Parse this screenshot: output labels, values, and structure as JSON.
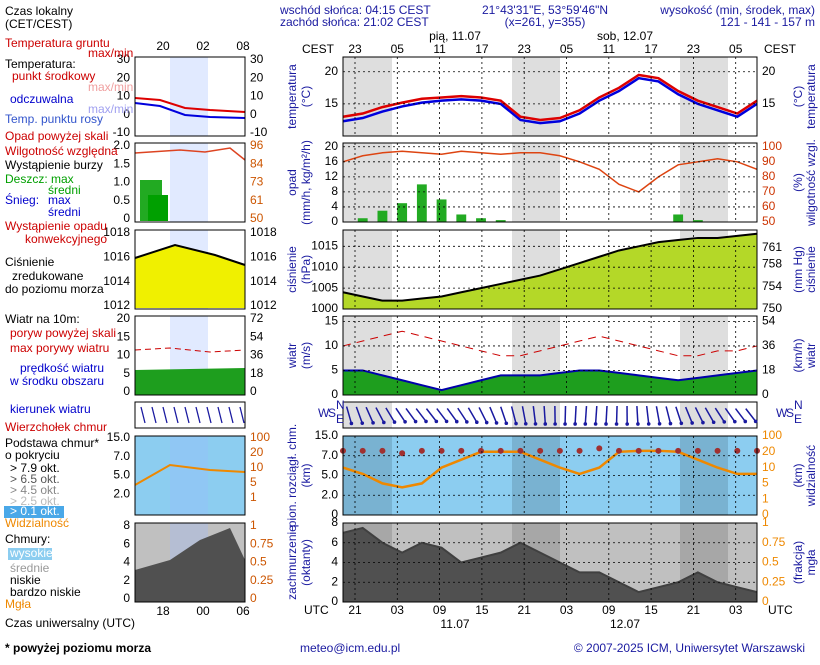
{
  "header": {
    "sunrise": "wschód słońca: 04:15 CEST",
    "sunset": "zachód słońca: 21:02 CEST",
    "coords": "21°43'31\"E, 53°59'46\"N",
    "grid": "(x=261, y=355)",
    "elev_title": "wysokość (min, środek, max)",
    "elev": "121 - 141 - 157 m"
  },
  "top_axis": {
    "unit": "CEST",
    "hours": [
      "23",
      "05",
      "11",
      "17",
      "23",
      "05",
      "11",
      "17",
      "23",
      "05"
    ],
    "days": [
      "pią, 11.07",
      "sob, 12.07"
    ]
  },
  "bottom_axis": {
    "unit": "UTC",
    "hours": [
      "21",
      "03",
      "09",
      "15",
      "21",
      "03",
      "09",
      "15",
      "21",
      "03"
    ],
    "days": [
      "11.07",
      "12.07"
    ]
  },
  "direction_labels": [
    "W",
    "S",
    "N",
    "E"
  ],
  "legend": {
    "local_time": [
      "Czas lokalny",
      "(CET/CEST)"
    ],
    "local_hours": [
      "20",
      "02",
      "08"
    ],
    "utc_hours": [
      "18",
      "00",
      "06"
    ],
    "utc_title": "Czas uniwersalny (UTC)",
    "temp": {
      "labels": [
        "Temperatura gruntu",
        "max/min",
        "Temperatura:",
        "punkt środkowy",
        "max/min",
        "odczuwalna",
        "max/min",
        "Temp. punktu rosy"
      ],
      "ticks": [
        30,
        20,
        10,
        0,
        -10
      ],
      "ticks2": [
        30,
        20,
        10,
        0,
        -10
      ]
    },
    "precip": {
      "labels": [
        "Opad powyżej skali",
        "Wilgotność względna",
        "Wystąpienie burzy",
        "Deszcz: max",
        "średni",
        "Śnieg:",
        "max",
        "średni",
        "Wystąpienie opadu",
        "konwekcyjnego"
      ],
      "ticks": [
        {
          "value": 2,
          "label": "2.0"
        },
        {
          "value": 1.5,
          "label": "1.5"
        },
        {
          "value": 1,
          "label": "1.0"
        },
        {
          "value": 0.5,
          "label": "0.5"
        },
        0
      ],
      "ticks2": [
        96,
        84,
        73,
        61,
        50
      ]
    },
    "pressure": {
      "labels": [
        "Ciśnienie",
        "zredukowane",
        "do poziomu morza"
      ],
      "ticks": [
        1018,
        1016,
        1014,
        1012
      ],
      "ticks2": [
        1018,
        1016,
        1014,
        1012
      ]
    },
    "wind": {
      "labels": [
        "Wiatr na 10m:",
        "poryw powyżej skali",
        "max porywy wiatru",
        "prędkość wiatru",
        "w środku obszaru"
      ],
      "ticks": [
        20,
        15,
        10,
        5,
        0
      ],
      "ticks2": [
        72,
        54,
        36,
        18,
        0
      ]
    },
    "direction": "kierunek wiatru",
    "cloudbase": {
      "labels": [
        "Wierzchołek chmur",
        "Podstawa chmur*",
        "o pokryciu",
        "> 7.9 okt.",
        "> 6.5 okt.",
        "> 4.5 okt.",
        "> 2.5 okt.",
        "> 0.1 okt.",
        "Widzialność"
      ],
      "ticks": [
        {
          "value": 15,
          "label": "15.0"
        },
        {
          "value": 7,
          "label": "7.0"
        },
        {
          "value": 5,
          "label": "5.0"
        },
        {
          "value": 2,
          "label": "2.0"
        }
      ],
      "ticks2": [
        100,
        20,
        10,
        5,
        1
      ]
    },
    "clouds": {
      "labels": [
        "Chmury:",
        "wysokie",
        "średnie",
        "niskie",
        "bardzo niskie",
        "Mgła"
      ],
      "ticks": [
        8,
        6,
        4,
        2,
        0
      ],
      "ticks2": [
        1,
        0.75,
        0.5,
        0.25,
        0
      ]
    }
  },
  "chart_data": [
    {
      "type": "line",
      "ylabel": [
        "temperatura",
        "(°C)"
      ],
      "y2label": [
        "(°C)",
        "temperatura"
      ],
      "ylim": [
        10,
        22.3
      ],
      "yticks": [
        15,
        20
      ],
      "y2lim": [
        10,
        22.3
      ],
      "y2ticks": [
        15,
        20
      ],
      "grid": true,
      "background": "#ffffff",
      "series": [
        {
          "color": "#dd0000",
          "values": [
            13.0,
            13.5,
            14.5,
            15.2,
            15.8,
            16.0,
            16.2,
            16.0,
            15.5,
            13.0,
            12.5,
            12.8,
            14.0,
            16.0,
            17.5,
            19.5,
            19.0,
            17.0,
            15.5,
            14.5,
            13.5,
            15.5
          ]
        },
        {
          "color": "#0000dd",
          "values": [
            12.3,
            12.8,
            13.8,
            14.6,
            15.2,
            15.5,
            15.7,
            15.5,
            15.0,
            12.5,
            12.0,
            12.3,
            13.5,
            15.5,
            17.0,
            19.0,
            18.5,
            16.5,
            15.0,
            14.0,
            13.0,
            15.0
          ]
        }
      ]
    },
    {
      "type": "bar",
      "ylabel": [
        "opad",
        "(mm/h, kg/m²/h)"
      ],
      "y2label": [
        "(%)",
        "wilgotność wzgl."
      ],
      "ylim": [
        0,
        21
      ],
      "yticks": [
        0,
        4,
        8,
        12,
        16,
        20
      ],
      "y2lim": [
        50,
        102.5
      ],
      "y2ticks": [
        50,
        60,
        70,
        80,
        90,
        100
      ],
      "y2color": "#cc3300",
      "grid": true,
      "background": "#ffffff",
      "series": [
        {
          "color": "#22aa22",
          "values": [
            0,
            1,
            3,
            5,
            10,
            6,
            2,
            1,
            0.5,
            0,
            0,
            0,
            0,
            0,
            0,
            0,
            0,
            2,
            0.5,
            0,
            0,
            0
          ]
        },
        {
          "color": "#dd4411",
          "axis": "y2",
          "values": [
            90,
            94,
            96,
            97,
            96,
            95,
            97,
            96,
            95,
            96,
            96,
            94,
            90,
            85,
            75,
            70,
            80,
            88,
            90,
            92,
            90,
            85
          ]
        }
      ]
    },
    {
      "type": "area",
      "ylabel": [
        "ciśnienie",
        "(hPa)"
      ],
      "y2label": [
        "(mm Hg)",
        "ciśnienie"
      ],
      "ylim": [
        1000,
        1018.9
      ],
      "yticks": [
        1000,
        1005,
        1010,
        1015
      ],
      "y2lim": [
        750,
        764.2
      ],
      "y2ticks": [
        750,
        754,
        758,
        761
      ],
      "grid": true,
      "background": "#ffffff",
      "series": [
        {
          "color": "#000000",
          "fill": "#b4d828",
          "values": [
            1004,
            1003,
            1002,
            1002,
            1002.5,
            1003,
            1004,
            1005,
            1006,
            1007,
            1008,
            1009.5,
            1011,
            1012.5,
            1014,
            1015,
            1016,
            1016.5,
            1017,
            1017,
            1017.5,
            1018
          ]
        }
      ]
    },
    {
      "type": "area",
      "ylabel": [
        "wiatr",
        "(m/s)"
      ],
      "y2label": [
        "(km/h)",
        "wiatr"
      ],
      "ylim": [
        0,
        16.1
      ],
      "yticks": [
        0,
        5,
        10,
        15
      ],
      "y2lim": [
        0,
        58
      ],
      "y2ticks": [
        0,
        18,
        36,
        54
      ],
      "grid": true,
      "background": "#ffffff",
      "series": [
        {
          "color": "#0000aa",
          "fill": "#1e9e1e",
          "values": [
            5,
            5,
            4,
            3,
            2,
            1,
            2,
            3,
            4,
            4,
            4,
            4.5,
            5,
            5,
            4.5,
            4,
            3.5,
            3,
            3.5,
            4,
            4.5,
            5
          ]
        },
        {
          "color": "#cc0000",
          "values": [
            10,
            11,
            12,
            13,
            12,
            11,
            10,
            9,
            8,
            8,
            9,
            10,
            11,
            12,
            11,
            10,
            9,
            8,
            8,
            9,
            9,
            10
          ]
        }
      ]
    },
    {
      "type": "line",
      "scale": "ticks",
      "ylabel": [
        "pion. rozciągł. chm.",
        "(km)"
      ],
      "y2label": [
        "(km)",
        "widzialność"
      ],
      "ylim": [
        0,
        15
      ],
      "yticks": [
        0,
        {
          "value": 2,
          "label": "2.0"
        },
        {
          "value": 5,
          "label": "5.0"
        },
        {
          "value": 7,
          "label": "7.0"
        },
        {
          "value": 15,
          "label": "15.0"
        }
      ],
      "y2lim": [
        0,
        100
      ],
      "y2ticks": [
        0,
        1,
        5,
        10,
        20,
        100
      ],
      "y2color": "#ee8800",
      "grid": true,
      "background": "#8ccdf0",
      "series": [
        {
          "color": "#ee8800",
          "axis": "y2",
          "values": [
            10,
            8,
            5,
            4,
            5,
            10,
            15,
            20,
            20,
            20,
            15,
            10,
            8,
            10,
            20,
            25,
            25,
            20,
            15,
            10,
            8,
            8
          ]
        },
        {
          "color": "#a03030",
          "marker": "dot",
          "values": [
            9,
            9,
            9,
            8,
            9,
            9,
            9,
            9,
            9,
            9,
            9,
            9,
            9,
            10,
            9,
            9,
            9,
            9,
            9,
            9,
            9,
            9
          ]
        }
      ]
    },
    {
      "type": "area",
      "ylabel": [
        "zachmurzenie",
        "(oktanty)"
      ],
      "y2label": [
        "(frakcja)",
        "mgła"
      ],
      "ylim": [
        0,
        8
      ],
      "yticks": [
        0,
        2,
        4,
        6,
        8
      ],
      "y2lim": [
        0,
        1
      ],
      "y2ticks": [
        0,
        0.25,
        0.5,
        0.75,
        1
      ],
      "y2color": "#ee8800",
      "grid": true,
      "background": "#c0c0c0",
      "series": [
        {
          "color": "#404040",
          "fill": "#505050",
          "values": [
            7,
            7.5,
            6,
            5,
            6,
            5.5,
            4,
            4.5,
            5,
            6,
            5,
            4,
            3,
            3,
            2,
            1,
            1.5,
            2,
            3,
            2,
            1.5,
            1
          ]
        }
      ]
    }
  ],
  "footer": {
    "note": "* powyżej poziomu morza",
    "email": "meteo@icm.edu.pl",
    "copyright": "© 2007-2025 ICM, Uniwersytet Warszawski"
  }
}
